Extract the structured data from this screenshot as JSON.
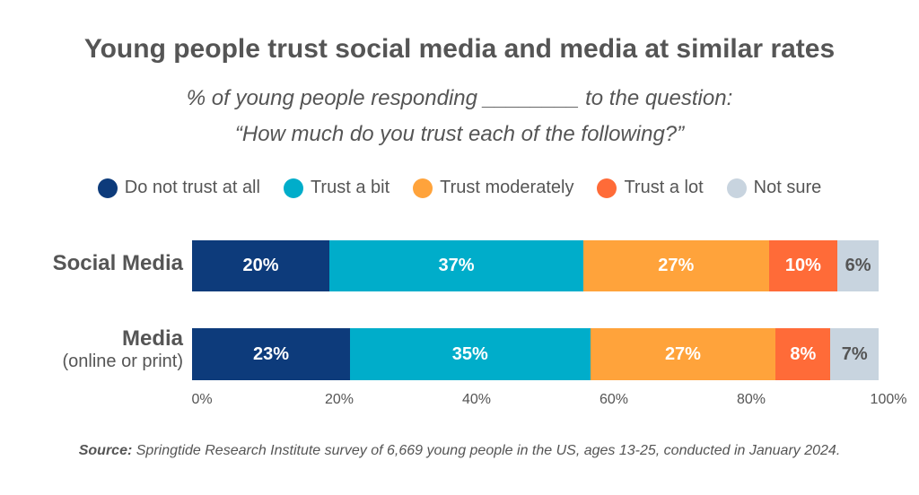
{
  "chart_data": {
    "type": "bar",
    "orientation": "horizontal-stacked",
    "title": "Young people trust social media and media at similar rates",
    "subtitle": [
      "% of young people responding ________ to the question:",
      "“How much do you trust each of the following?”"
    ],
    "categories": [
      {
        "label": "Social Media",
        "sublabel": ""
      },
      {
        "label": "Media",
        "sublabel": "(online or print)"
      }
    ],
    "series": [
      {
        "name": "Do not trust at all",
        "color": "#0d3b7b",
        "text_color": "#ffffff",
        "values": [
          20,
          23
        ]
      },
      {
        "name": "Trust a bit",
        "color": "#00adca",
        "text_color": "#ffffff",
        "values": [
          37,
          35
        ]
      },
      {
        "name": "Trust moderately",
        "color": "#ffa33b",
        "text_color": "#ffffff",
        "values": [
          27,
          27
        ]
      },
      {
        "name": "Trust a lot",
        "color": "#ff6b38",
        "text_color": "#ffffff",
        "values": [
          10,
          8
        ]
      },
      {
        "name": "Not sure",
        "color": "#c8d4df",
        "text_color": "#555555",
        "values": [
          6,
          7
        ]
      }
    ],
    "xlim": [
      0,
      100
    ],
    "xticks": [
      "0%",
      "20%",
      "40%",
      "60%",
      "80%",
      "100%"
    ],
    "legend_position": "top",
    "grid": false
  },
  "source": {
    "label": "Source:",
    "text": " Springtide Research Institute survey of 6,669 young people in the US, ages 13-25, conducted in January 2024."
  }
}
